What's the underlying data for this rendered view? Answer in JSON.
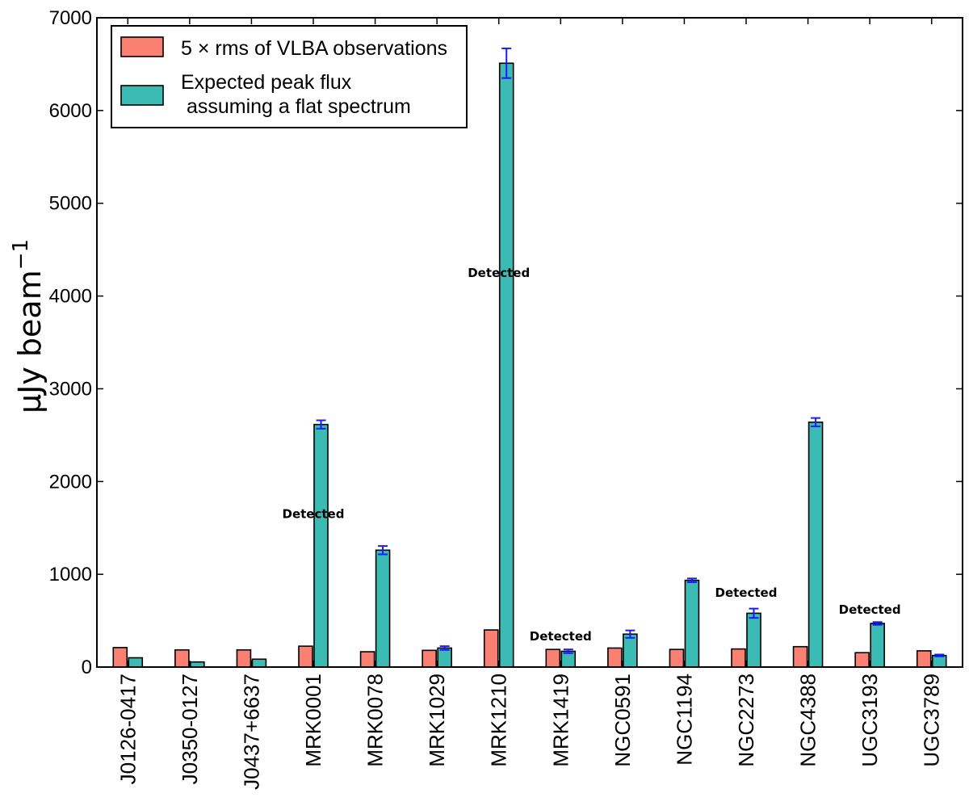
{
  "chart_data": {
    "type": "bar",
    "title": "",
    "xlabel": "",
    "ylabel": "μJy beam",
    "ylabel_superscript": "−1",
    "ylim": [
      0,
      7000
    ],
    "yticks": [
      "0",
      "1000",
      "2000",
      "3000",
      "4000",
      "5000",
      "6000",
      "7000"
    ],
    "categories": [
      "J0126-0417",
      "J0350-0127",
      "J0437+6637",
      "MRK0001",
      "MRK0078",
      "MRK1029",
      "MRK1210",
      "MRK1419",
      "NGC0591",
      "NGC1194",
      "NGC2273",
      "NGC4388",
      "UGC3193",
      "UGC3789"
    ],
    "series": [
      {
        "name": "5 × rms of VLBA observations",
        "color": "#fa8072",
        "values": [
          210,
          185,
          185,
          225,
          165,
          180,
          400,
          190,
          205,
          190,
          195,
          220,
          155,
          175
        ]
      },
      {
        "name": "Expected peak flux assuming a flat spectrum",
        "color": "#3bbbb3",
        "values": [
          100,
          55,
          85,
          2615,
          1260,
          205,
          6510,
          170,
          355,
          935,
          580,
          2640,
          470,
          125
        ],
        "errors": [
          0,
          0,
          0,
          45,
          45,
          20,
          160,
          20,
          40,
          20,
          50,
          45,
          15,
          10
        ]
      }
    ],
    "error_bar_color": "#1a1aff",
    "legend": {
      "position": "top-left",
      "entries": [
        {
          "label": "5 × rms of VLBA observations"
        },
        {
          "label_lines": [
            "Expected peak flux",
            " assuming a flat spectrum"
          ]
        }
      ]
    },
    "annotations": [
      {
        "text": "Detected",
        "category": "MRK0001",
        "y": 1650
      },
      {
        "text": "Detected",
        "category": "MRK1210",
        "y": 4250
      },
      {
        "text": "Detected",
        "category": "MRK1419",
        "y": 330
      },
      {
        "text": "Detected",
        "category": "NGC2273",
        "y": 800
      },
      {
        "text": "Detected",
        "category": "UGC3193",
        "y": 620
      }
    ]
  }
}
